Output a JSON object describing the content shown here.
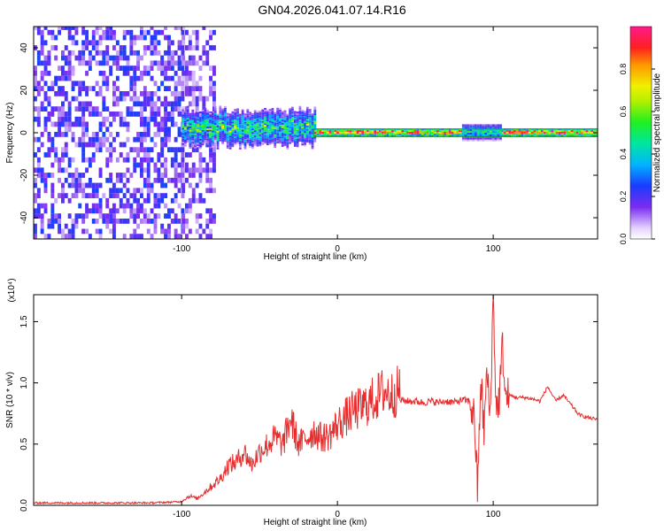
{
  "title": "GN04.2026.041.07.14.R16",
  "chart_data": [
    {
      "type": "heatmap",
      "xlabel": "Height of straight line (km)",
      "ylabel": "Frequency (Hz)",
      "xlim": [
        -195,
        167
      ],
      "ylim": [
        -50,
        50
      ],
      "xticks": [
        -100,
        0,
        100
      ],
      "yticks": [
        -40,
        -20,
        0,
        20,
        40
      ],
      "colorbar": {
        "label": "Normalized spectral amplitude",
        "ticks": [
          "0.0",
          "0.2",
          "0.4",
          "0.6",
          "0.8"
        ],
        "range": [
          0,
          1
        ],
        "placement": "right"
      },
      "regions": [
        {
          "x_from": -195,
          "x_to": -100,
          "freq_spread": 50,
          "level": 0.12
        },
        {
          "x_from": -100,
          "x_to": -80,
          "freq_spread": 50,
          "level": 0.1
        },
        {
          "x_from": -100,
          "x_to": -15,
          "freq_center": 2,
          "freq_spread": 8,
          "level": 0.4
        },
        {
          "x_from": -15,
          "x_to": 167,
          "freq_center": 0,
          "freq_spread": 2,
          "level": 1.0
        },
        {
          "x_from": 80,
          "x_to": 105,
          "freq_center": 0,
          "freq_spread": 4,
          "level": 0.5
        }
      ]
    },
    {
      "type": "line",
      "xlabel": "Height of straight line (km)",
      "ylabel": "SNR (10 * v/v)",
      "y_multiplier": "(x10⁴)",
      "xlim": [
        -195,
        167
      ],
      "ylim": [
        0,
        1.72
      ],
      "xticks": [
        -100,
        0,
        100
      ],
      "yticks": [
        "0.0",
        "0.5",
        "1.0",
        "1.5"
      ],
      "color": "#e62e2e",
      "series": [
        {
          "x": [
            -195,
            -150,
            -120,
            -100,
            -95,
            -90,
            -85,
            -80,
            -75,
            -70,
            -65,
            -60,
            -55,
            -50,
            -45,
            -40,
            -35,
            -30,
            -25,
            -20,
            -15,
            -10,
            -5,
            0,
            5,
            10,
            15,
            20,
            25,
            30,
            35,
            40,
            45,
            50,
            55,
            60,
            65,
            70,
            75,
            80,
            85,
            88,
            90,
            92,
            94,
            96,
            98,
            100,
            102,
            104,
            106,
            108,
            110,
            115,
            120,
            125,
            130,
            135,
            140,
            145,
            150,
            155,
            160,
            167
          ],
          "y": [
            0.02,
            0.02,
            0.02,
            0.03,
            0.07,
            0.05,
            0.1,
            0.15,
            0.2,
            0.3,
            0.32,
            0.4,
            0.3,
            0.4,
            0.45,
            0.5,
            0.45,
            0.65,
            0.45,
            0.5,
            0.55,
            0.5,
            0.52,
            0.6,
            0.65,
            0.7,
            0.72,
            0.76,
            0.8,
            0.85,
            0.82,
            0.86,
            0.85,
            0.85,
            0.84,
            0.85,
            0.84,
            0.85,
            0.84,
            0.86,
            0.85,
            0.7,
            0.1,
            1.05,
            0.6,
            1.1,
            0.7,
            1.72,
            0.75,
            0.9,
            1.3,
            0.85,
            0.9,
            0.88,
            0.88,
            0.87,
            0.85,
            0.97,
            0.85,
            0.9,
            0.82,
            0.74,
            0.72,
            0.7
          ]
        }
      ]
    }
  ]
}
